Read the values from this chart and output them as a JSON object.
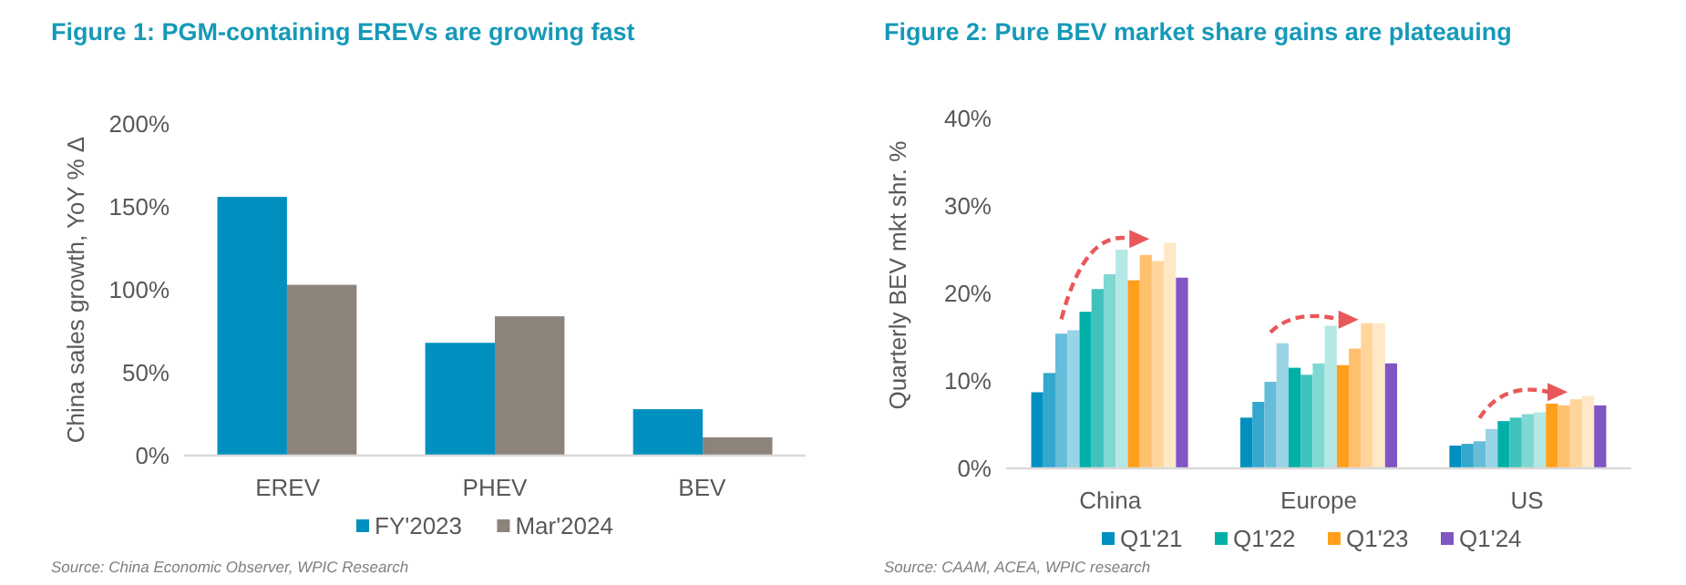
{
  "chart_data": [
    {
      "type": "bar",
      "title": "Figure 1: PGM-containing EREVs are growing fast",
      "ylabel": "China sales growth, YoY % Δ",
      "categories": [
        "EREV",
        "PHEV",
        "BEV"
      ],
      "series": [
        {
          "name": "FY'2023",
          "color": "#0090bf",
          "values": [
            156,
            68,
            28
          ]
        },
        {
          "name": "Mar'2024",
          "color": "#8c847a",
          "values": [
            103,
            84,
            11
          ]
        }
      ],
      "ylim": [
        0,
        200
      ],
      "yticks": [
        {
          "value": 0,
          "label": "0%"
        },
        {
          "value": 50,
          "label": "50%"
        },
        {
          "value": 100,
          "label": "100%"
        },
        {
          "value": 150,
          "label": "150%"
        },
        {
          "value": 200,
          "label": "200%"
        }
      ],
      "grid": false,
      "legend": "bottom",
      "annotations": [
        "Source: China Economic Observer, WPIC Research"
      ]
    },
    {
      "type": "bar",
      "title": "Figure 2: Pure BEV market share gains are plateauing",
      "ylabel": "Quarterly BEV mkt shr. %",
      "categories": [
        "China",
        "Europe",
        "US"
      ],
      "series": [
        {
          "name": "Q1'21",
          "color": "#0090bf",
          "values": [
            8.7,
            5.8,
            2.6
          ]
        },
        {
          "color": "#33a8cc",
          "values": [
            10.9,
            7.6,
            2.8
          ]
        },
        {
          "color": "#66bdd9",
          "values": [
            15.4,
            9.9,
            3.1
          ]
        },
        {
          "color": "#99d3e6",
          "values": [
            15.8,
            14.3,
            4.5
          ]
        },
        {
          "name": "Q1'22",
          "color": "#00b0a8",
          "values": [
            17.9,
            11.5,
            5.4
          ]
        },
        {
          "color": "#40c2bc",
          "values": [
            20.5,
            10.7,
            5.8
          ]
        },
        {
          "color": "#80d8d4",
          "values": [
            22.2,
            12.0,
            6.2
          ]
        },
        {
          "color": "#b3e8e5",
          "values": [
            25.0,
            16.3,
            6.4
          ]
        },
        {
          "name": "Q1'23",
          "color": "#ff9f1c",
          "values": [
            21.5,
            11.8,
            7.4
          ]
        },
        {
          "color": "#ffc06e",
          "values": [
            24.4,
            13.7,
            7.2
          ]
        },
        {
          "color": "#ffd59c",
          "values": [
            23.7,
            16.6,
            7.9
          ]
        },
        {
          "color": "#ffe8c8",
          "values": [
            25.8,
            16.6,
            8.3
          ]
        },
        {
          "name": "Q1'24",
          "color": "#8055c4",
          "values": [
            21.8,
            12.0,
            7.2
          ]
        }
      ],
      "ylim": [
        0,
        40
      ],
      "yticks": [
        {
          "value": 0,
          "label": "0%"
        },
        {
          "value": 10,
          "label": "10%"
        },
        {
          "value": 20,
          "label": "20%"
        },
        {
          "value": 30,
          "label": "30%"
        },
        {
          "value": 40,
          "label": "40%"
        }
      ],
      "grid": false,
      "legend": "bottom",
      "annotations": [
        "Source: CAAM, ACEA, WPIC research"
      ]
    }
  ]
}
